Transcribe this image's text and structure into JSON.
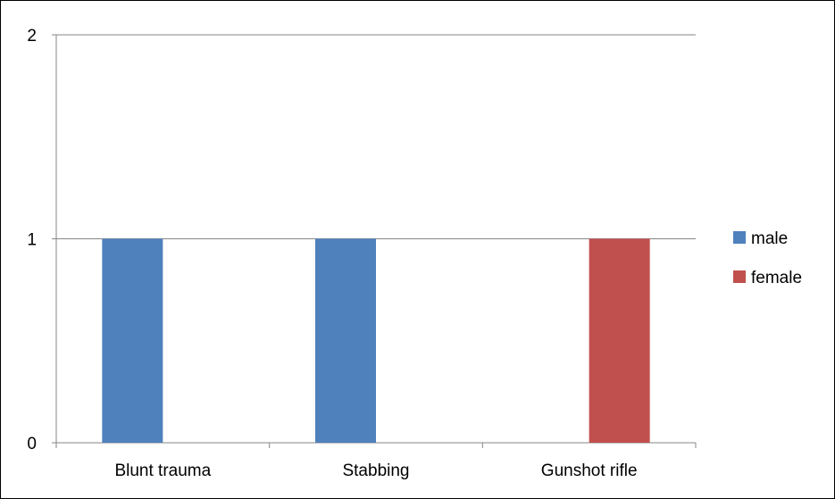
{
  "chart_data": {
    "type": "bar",
    "categories": [
      "Blunt trauma",
      "Stabbing",
      "Gunshot rifle"
    ],
    "series": [
      {
        "name": "male",
        "values": [
          1,
          1,
          0
        ],
        "color": "#4f81bd"
      },
      {
        "name": "female",
        "values": [
          0,
          0,
          1
        ],
        "color": "#c0504d"
      }
    ],
    "yticks": [
      0,
      1,
      2
    ],
    "ylim": [
      0,
      2
    ],
    "grid": true,
    "legend_position": "right",
    "title": "",
    "xlabel": "",
    "ylabel": ""
  }
}
